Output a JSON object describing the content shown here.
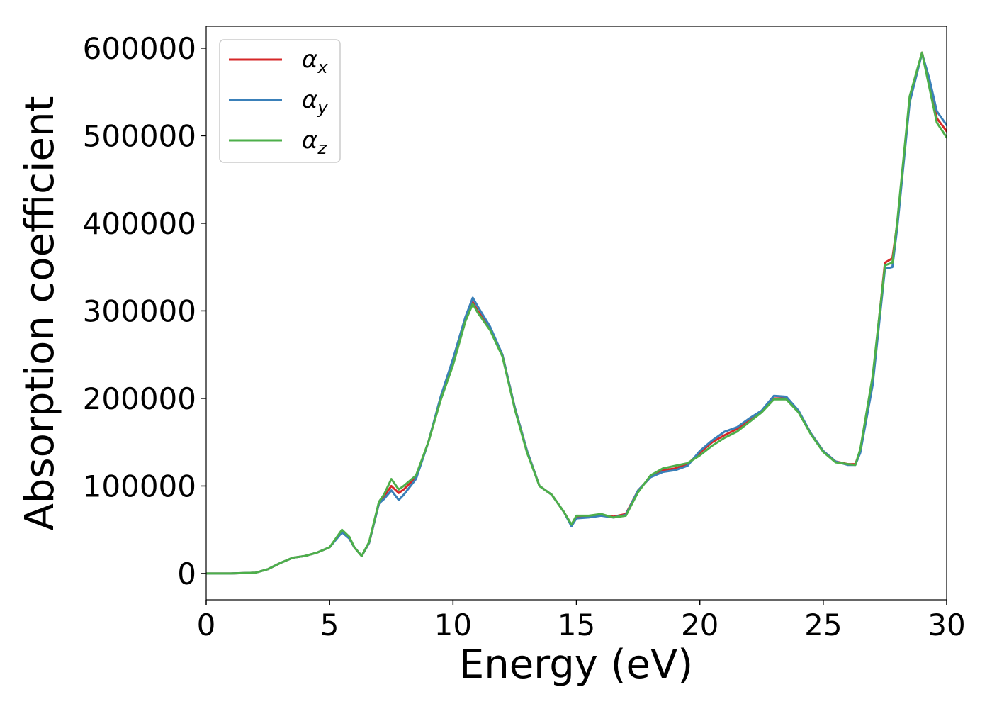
{
  "chart_data": {
    "type": "line",
    "title": "",
    "xlabel": "Energy (eV)",
    "ylabel": "Absorption coefficient",
    "xlim": [
      0,
      30
    ],
    "ylim": [
      -30000,
      625000
    ],
    "xticks": [
      0,
      5,
      10,
      15,
      20,
      25,
      30
    ],
    "yticks": [
      0,
      100000,
      200000,
      300000,
      400000,
      500000,
      600000
    ],
    "grid": false,
    "legend_position": "upper-left",
    "series": [
      {
        "name": "αx",
        "base": "α",
        "sub": "x",
        "color": "#d62728",
        "x": [
          0,
          1,
          2,
          2.5,
          3,
          3.5,
          4,
          4.5,
          5,
          5.5,
          5.8,
          6,
          6.3,
          6.6,
          7,
          7.2,
          7.5,
          7.8,
          8,
          8.5,
          9,
          9.5,
          10,
          10.5,
          10.8,
          11,
          11.5,
          12,
          12.5,
          13,
          13.5,
          14,
          14.5,
          14.8,
          15,
          15.5,
          16,
          16.5,
          17,
          17.5,
          18,
          18.5,
          19,
          19.5,
          20,
          20.5,
          21,
          21.5,
          22,
          22.5,
          23,
          23.5,
          24,
          24.5,
          25,
          25.5,
          26,
          26.3,
          26.5,
          27,
          27.5,
          27.8,
          28,
          28.5,
          29,
          29.3,
          29.6,
          30
        ],
        "values": [
          0,
          0,
          1000,
          5000,
          12000,
          18000,
          20000,
          24000,
          30000,
          48000,
          40000,
          30000,
          20000,
          35000,
          80000,
          88000,
          100000,
          92000,
          96000,
          110000,
          150000,
          200000,
          240000,
          290000,
          310000,
          300000,
          280000,
          250000,
          190000,
          140000,
          100000,
          90000,
          70000,
          55000,
          64000,
          65000,
          67000,
          65000,
          68000,
          95000,
          110000,
          118000,
          120000,
          125000,
          138000,
          150000,
          158000,
          165000,
          175000,
          185000,
          200000,
          200000,
          185000,
          160000,
          140000,
          128000,
          125000,
          125000,
          140000,
          220000,
          355000,
          360000,
          400000,
          540000,
          595000,
          560000,
          520000,
          505000
        ]
      },
      {
        "name": "αy",
        "base": "α",
        "sub": "y",
        "color": "#3a80b9",
        "x": [
          0,
          1,
          2,
          2.5,
          3,
          3.5,
          4,
          4.5,
          5,
          5.5,
          5.8,
          6,
          6.3,
          6.6,
          7,
          7.2,
          7.5,
          7.8,
          8,
          8.5,
          9,
          9.5,
          10,
          10.5,
          10.8,
          11,
          11.5,
          12,
          12.5,
          13,
          13.5,
          14,
          14.5,
          14.8,
          15,
          15.5,
          16,
          16.5,
          17,
          17.5,
          18,
          18.5,
          19,
          19.5,
          20,
          20.5,
          21,
          21.5,
          22,
          22.5,
          23,
          23.5,
          24,
          24.5,
          25,
          25.5,
          26,
          26.3,
          26.5,
          27,
          27.5,
          27.8,
          28,
          28.5,
          29,
          29.3,
          29.6,
          30
        ],
        "values": [
          0,
          0,
          1000,
          5000,
          12000,
          18000,
          20000,
          24000,
          30000,
          47000,
          40000,
          30000,
          20000,
          35000,
          80000,
          85000,
          95000,
          84000,
          90000,
          108000,
          150000,
          202000,
          245000,
          293000,
          315000,
          305000,
          282000,
          250000,
          190000,
          140000,
          100000,
          90000,
          70000,
          54000,
          63000,
          64000,
          66000,
          64000,
          67000,
          95000,
          110000,
          116000,
          118000,
          123000,
          140000,
          152000,
          162000,
          167000,
          177000,
          186000,
          203000,
          202000,
          186000,
          160000,
          140000,
          128000,
          124000,
          124000,
          138000,
          215000,
          348000,
          350000,
          395000,
          538000,
          594000,
          565000,
          528000,
          512000
        ]
      },
      {
        "name": "αz",
        "base": "α",
        "sub": "z",
        "color": "#4daf4a",
        "x": [
          0,
          1,
          2,
          2.5,
          3,
          3.5,
          4,
          4.5,
          5,
          5.5,
          5.8,
          6,
          6.3,
          6.6,
          7,
          7.2,
          7.5,
          7.8,
          8,
          8.5,
          9,
          9.5,
          10,
          10.5,
          10.8,
          11,
          11.5,
          12,
          12.5,
          13,
          13.5,
          14,
          14.5,
          14.8,
          15,
          15.5,
          16,
          16.5,
          17,
          17.5,
          18,
          18.5,
          19,
          19.5,
          20,
          20.5,
          21,
          21.5,
          22,
          22.5,
          23,
          23.5,
          24,
          24.5,
          25,
          25.5,
          26,
          26.3,
          26.5,
          27,
          27.5,
          27.8,
          28,
          28.5,
          29,
          29.3,
          29.6,
          30
        ],
        "values": [
          0,
          0,
          1000,
          5000,
          12000,
          18000,
          20000,
          24000,
          30000,
          50000,
          42000,
          30000,
          20000,
          36000,
          82000,
          90000,
          108000,
          96000,
          100000,
          112000,
          150000,
          198000,
          238000,
          288000,
          308000,
          298000,
          278000,
          248000,
          188000,
          138000,
          100000,
          90000,
          70000,
          56000,
          66000,
          66000,
          68000,
          64000,
          66000,
          93000,
          112000,
          120000,
          123000,
          126000,
          135000,
          146000,
          155000,
          162000,
          173000,
          184000,
          199000,
          199000,
          184000,
          159000,
          139000,
          127000,
          125000,
          124000,
          142000,
          225000,
          352000,
          355000,
          402000,
          545000,
          595000,
          555000,
          515000,
          498000
        ]
      }
    ]
  }
}
